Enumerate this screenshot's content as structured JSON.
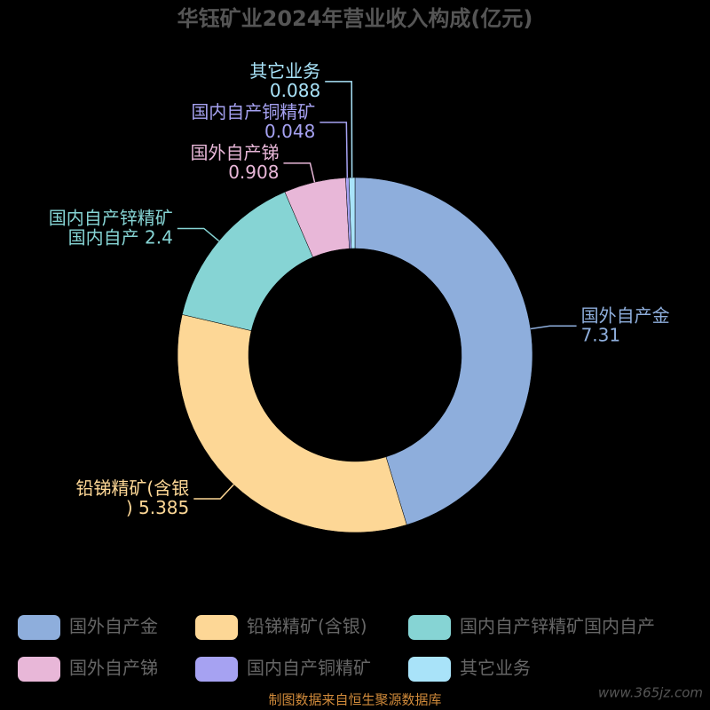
{
  "chart_data": {
    "type": "donut",
    "title": "华钰矿业2024年营业收入构成(亿元)",
    "categories": [
      "国外自产金",
      "铅锑精矿(含银)",
      "国内自产锌精矿国内自产",
      "国外自产锑",
      "国内自产铜精矿",
      "其它业务"
    ],
    "values": [
      7.31,
      5.385,
      2.4,
      0.908,
      0.048,
      0.088
    ],
    "colors": [
      "#8eaedc",
      "#fdd796",
      "#86d4d4",
      "#e8b7d8",
      "#a6a2f2",
      "#a9e3f9"
    ],
    "source": "制图数据来自恒生聚源数据库",
    "watermark": "www.365jz.com"
  }
}
